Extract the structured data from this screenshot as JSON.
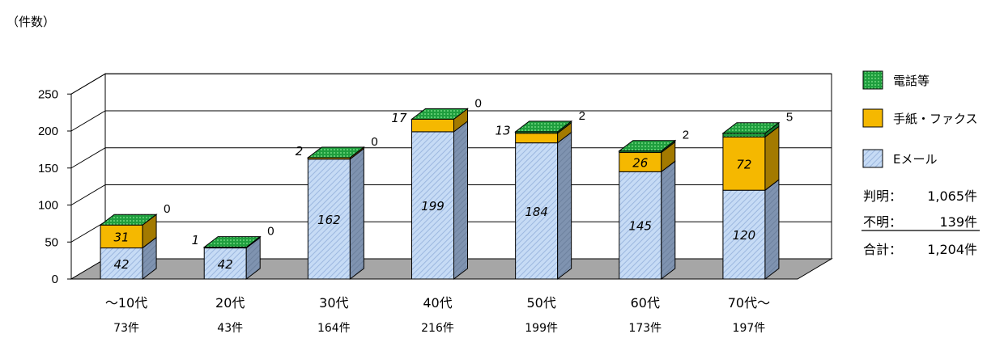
{
  "chart_data": {
    "type": "bar",
    "stacked": true,
    "ylabel": "（件数）",
    "ylim": [
      0,
      250
    ],
    "yticks": [
      0,
      50,
      100,
      150,
      200,
      250
    ],
    "grid": true,
    "categories": [
      "～10代",
      "20代",
      "30代",
      "40代",
      "50代",
      "60代",
      "70代～"
    ],
    "category_totals": [
      "73件",
      "43件",
      "164件",
      "216件",
      "199件",
      "173件",
      "197件"
    ],
    "series": [
      {
        "name": "Eメール",
        "color": "#b7d0f0",
        "values": [
          42,
          42,
          162,
          199,
          184,
          145,
          120
        ]
      },
      {
        "name": "手紙・ファクス",
        "color": "#f5b800",
        "values": [
          31,
          1,
          2,
          17,
          13,
          26,
          72
        ]
      },
      {
        "name": "電話等",
        "color": "#1f9e3e",
        "values": [
          0,
          0,
          0,
          0,
          2,
          2,
          5
        ]
      }
    ],
    "legend_position": "right",
    "summary": [
      {
        "label": "判明：",
        "value": "1,065件",
        "underline": false
      },
      {
        "label": "不明：",
        "value": "139件",
        "underline": true
      },
      {
        "label": "合計：",
        "value": "1,204件",
        "underline": false
      }
    ]
  }
}
